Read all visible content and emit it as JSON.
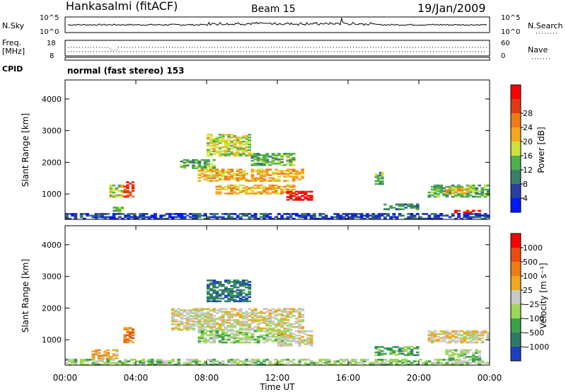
{
  "header": {
    "station": "Hankasalmi (fitACF)",
    "beam": "Beam 15",
    "date": "19/Jan/2009"
  },
  "top_panels": {
    "nsky_label": "N.Sky",
    "nsky_ticks": [
      "10^5",
      "10^0"
    ],
    "nsearch_label": "N.Search",
    "nsearch_ticks": [
      "10^5",
      "10^0"
    ],
    "freq_label_1": "Freq.",
    "freq_label_2": "[MHz]",
    "freq_ticks": [
      "18",
      "8"
    ],
    "nave_label": "Nave",
    "nave_ticks": [
      "60",
      "0"
    ],
    "cpid_label": "CPID",
    "cpid_value": "normal (fast stereo) 153"
  },
  "colors": {
    "power_scale": [
      "#0019ff",
      "#2a3f9f",
      "#3a7e6a",
      "#4fb04f",
      "#cfe23a",
      "#f5a623",
      "#f07a1a",
      "#e03a14",
      "#ff0000"
    ],
    "velocity_scale": [
      "#1f3fbf",
      "#2e7a6a",
      "#3aa24a",
      "#9fd65a",
      "#c8c8c8",
      "#f2a71f",
      "#ef7d16",
      "#ea4b10",
      "#ff0000"
    ]
  },
  "chart_data": [
    {
      "type": "heatmap",
      "title": "Power",
      "xlabel": "",
      "ylabel": "Slant Range [km]",
      "x_ticks": [
        "00:00",
        "04:00",
        "08:00",
        "12:00",
        "16:00",
        "20:00",
        "00:00"
      ],
      "y_ticks": [
        "1000",
        "2000",
        "3000",
        "4000"
      ],
      "ylim": [
        200,
        4600
      ],
      "colorbar": {
        "label": "Power [dB]",
        "ticks": [
          "4",
          "8",
          "12",
          "16",
          "20",
          "24",
          "28"
        ]
      },
      "regions": [
        {
          "t0": 2.5,
          "t1": 3.3,
          "r0": 900,
          "r1": 1300,
          "level": 4
        },
        {
          "t0": 3.3,
          "t1": 3.9,
          "r0": 900,
          "r1": 1400,
          "level": 7
        },
        {
          "t0": 2.7,
          "t1": 3.3,
          "r0": 400,
          "r1": 600,
          "level": 3
        },
        {
          "t0": 6.5,
          "t1": 8.5,
          "r0": 1800,
          "r1": 2100,
          "level": 3
        },
        {
          "t0": 7.5,
          "t1": 13.5,
          "r0": 1400,
          "r1": 1800,
          "level": 5
        },
        {
          "t0": 8.0,
          "t1": 10.5,
          "r0": 2200,
          "r1": 2900,
          "level": 4
        },
        {
          "t0": 8.5,
          "t1": 13.0,
          "r0": 1000,
          "r1": 1300,
          "level": 5
        },
        {
          "t0": 12.5,
          "t1": 14.0,
          "r0": 800,
          "r1": 1100,
          "level": 8
        },
        {
          "t0": 10.5,
          "t1": 13.0,
          "r0": 1900,
          "r1": 2300,
          "level": 3
        },
        {
          "t0": 17.5,
          "t1": 18.0,
          "r0": 1300,
          "r1": 1700,
          "level": 3
        },
        {
          "t0": 18.0,
          "t1": 20.0,
          "r0": 500,
          "r1": 700,
          "level": 2
        },
        {
          "t0": 20.5,
          "t1": 24.0,
          "r0": 900,
          "r1": 1300,
          "level": 3
        },
        {
          "t0": 22.0,
          "t1": 23.5,
          "r0": 350,
          "r1": 500,
          "level": 8
        },
        {
          "t0": 21.5,
          "t1": 23.0,
          "r0": 1000,
          "r1": 1200,
          "level": 5
        },
        {
          "t0": 0.0,
          "t1": 24.0,
          "r0": 200,
          "r1": 400,
          "level": 1
        }
      ]
    },
    {
      "type": "heatmap",
      "title": "Velocity",
      "xlabel": "Time UT",
      "ylabel": "Slant Range [km]",
      "x_ticks": [
        "00:00",
        "04:00",
        "08:00",
        "12:00",
        "16:00",
        "20:00",
        "00:00"
      ],
      "y_ticks": [
        "1000",
        "2000",
        "3000",
        "4000"
      ],
      "ylim": [
        200,
        4600
      ],
      "colorbar": {
        "label": "Velocity [m s⁻¹]",
        "ticks": [
          "1000",
          "500",
          "100",
          "25",
          "−25",
          "−100",
          "−500",
          "−1000"
        ]
      },
      "regions": [
        {
          "t0": 3.3,
          "t1": 3.9,
          "r0": 900,
          "r1": 1400,
          "level": 6
        },
        {
          "t0": 1.5,
          "t1": 3.0,
          "r0": 400,
          "r1": 700,
          "level": 5
        },
        {
          "t0": 6.0,
          "t1": 13.5,
          "r0": 1300,
          "r1": 2000,
          "level": 4
        },
        {
          "t0": 8.0,
          "t1": 10.5,
          "r0": 2200,
          "r1": 2900,
          "level": 1
        },
        {
          "t0": 7.5,
          "t1": 12.5,
          "r0": 900,
          "r1": 1300,
          "level": 3
        },
        {
          "t0": 12.0,
          "t1": 14.0,
          "r0": 800,
          "r1": 1300,
          "level": 4
        },
        {
          "t0": 17.5,
          "t1": 20.0,
          "r0": 500,
          "r1": 800,
          "level": 2
        },
        {
          "t0": 20.5,
          "t1": 24.0,
          "r0": 900,
          "r1": 1300,
          "level": 4
        },
        {
          "t0": 21.5,
          "t1": 23.5,
          "r0": 400,
          "r1": 700,
          "level": 3
        },
        {
          "t0": 0.0,
          "t1": 24.0,
          "r0": 200,
          "r1": 400,
          "level": 3
        }
      ]
    }
  ]
}
